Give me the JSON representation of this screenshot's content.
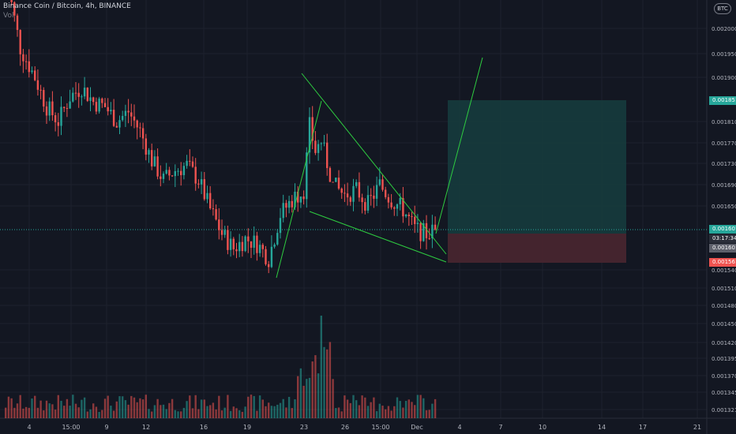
{
  "title": "Binance Coin / Bitcoin, 4h, BINANCE",
  "volume_label": "Vol",
  "currency_badge": "BTC",
  "colors": {
    "bg": "#131722",
    "up": "#26a69a",
    "down": "#ef5350",
    "grid": "#1e222d",
    "pattern": "#2ecc40",
    "profit": "#163b3d",
    "loss": "#4a2630"
  },
  "price_labels": {
    "target": "0.0018519",
    "current": "0.0016074",
    "countdown": "03:17:34",
    "entry": "0.0016012",
    "stop": "0.0015616"
  },
  "chart_data": {
    "type": "candlestick",
    "y_ticks": [
      "0.0020000",
      "0.0019500",
      "0.0019000",
      "0.0018100",
      "0.0017700",
      "0.0017300",
      "0.0016900",
      "0.0016500",
      "0.0015400",
      "0.0015100",
      "0.0014800",
      "0.0014500",
      "0.0014200",
      "0.0013950",
      "0.0013700",
      "0.0013450",
      "0.0013210"
    ],
    "x_ticks": [
      "4",
      "15:00",
      "9",
      "12",
      "16",
      "19",
      "23",
      "26",
      "15:00",
      "Dec",
      "4",
      "7",
      "10",
      "14",
      "17",
      "21"
    ],
    "ohlc_anchor_points": [
      [
        0,
        0.00213
      ],
      [
        2,
        0.00205
      ],
      [
        5,
        0.00196
      ],
      [
        10,
        0.0019
      ],
      [
        14,
        0.00184
      ],
      [
        18,
        0.00181
      ],
      [
        22,
        0.00186
      ],
      [
        26,
        0.00188
      ],
      [
        30,
        0.00185
      ],
      [
        34,
        0.00184
      ],
      [
        38,
        0.00181
      ],
      [
        42,
        0.00183
      ],
      [
        46,
        0.00179
      ],
      [
        50,
        0.00173
      ],
      [
        54,
        0.00169
      ],
      [
        58,
        0.00171
      ],
      [
        62,
        0.00172
      ],
      [
        66,
        0.00169
      ],
      [
        70,
        0.00163
      ],
      [
        74,
        0.00158
      ],
      [
        78,
        0.00155
      ],
      [
        82,
        0.00157
      ],
      [
        86,
        0.00156
      ],
      [
        90,
        0.00153
      ],
      [
        94,
        0.00162
      ],
      [
        98,
        0.00165
      ],
      [
        102,
        0.00167
      ],
      [
        104,
        0.0018
      ],
      [
        106,
        0.00175
      ],
      [
        108,
        0.00177
      ],
      [
        112,
        0.00168
      ],
      [
        116,
        0.00166
      ],
      [
        120,
        0.00167
      ],
      [
        124,
        0.00164
      ],
      [
        128,
        0.00168
      ],
      [
        132,
        0.00165
      ],
      [
        136,
        0.00163
      ],
      [
        140,
        0.00159
      ],
      [
        144,
        0.00158
      ],
      [
        148,
        0.00159
      ]
    ],
    "pattern": {
      "upper_wedge": [
        [
          "2023-11-21",
          "0.00190"
        ],
        [
          "2023-12-01",
          "0.00158"
        ]
      ],
      "lower_wedge": [
        [
          "2023-11-22",
          "0.00164"
        ],
        [
          "2023-12-01",
          "0.00155"
        ]
      ],
      "pole": [
        [
          "2023-11-20",
          "0.00152"
        ],
        [
          "2023-11-23",
          "0.00184"
        ]
      ],
      "projection": [
        [
          "2023-12-01",
          "0.00158"
        ],
        [
          "2023-12-03",
          "0.00194"
        ]
      ]
    }
  }
}
